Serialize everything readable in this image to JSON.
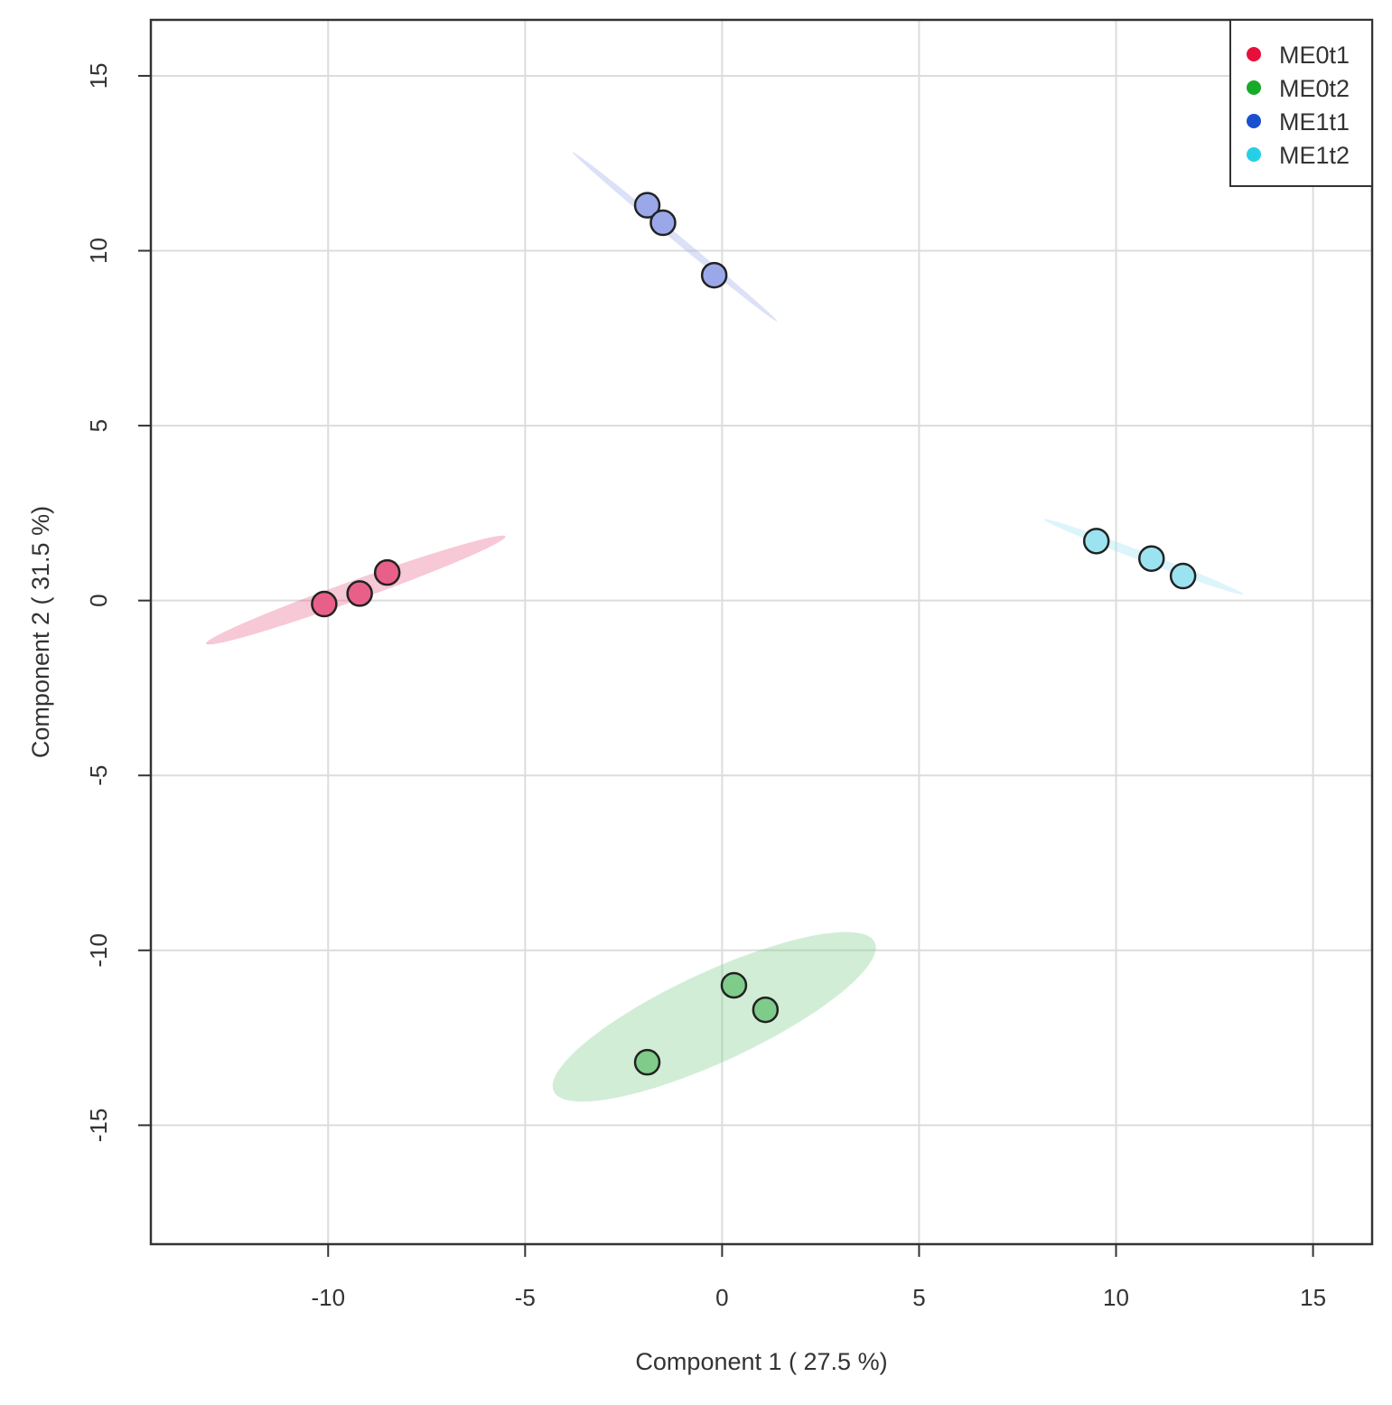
{
  "chart_data": {
    "type": "scatter",
    "title": "",
    "xlabel": "Component 1 ( 27.5 %)",
    "ylabel": "Component 2 ( 31.5 %)",
    "xlim": [
      -14.5,
      16.5
    ],
    "ylim": [
      -18.4,
      16.6
    ],
    "xticks": [
      -10,
      -5,
      0,
      5,
      10,
      15
    ],
    "xtick_labels": [
      "-10",
      "-5",
      "0",
      "5",
      "10",
      "15"
    ],
    "yticks": [
      -15,
      -10,
      -5,
      0,
      5,
      10,
      15
    ],
    "ytick_labels": [
      "-15",
      "-10",
      "-5",
      "0",
      "5",
      "10",
      "15"
    ],
    "grid": true,
    "legend_position": "top-right",
    "series": [
      {
        "name": "ME0t1",
        "color": "#e8103a",
        "fill": "#e8608a",
        "x": [
          -10.1,
          -9.2,
          -8.5
        ],
        "y": [
          -0.1,
          0.2,
          0.8
        ],
        "ellipse": {
          "center": [
            -9.3,
            0.3
          ],
          "angle_deg": 22,
          "semi_major": 4.1,
          "semi_minor": 0.28
        }
      },
      {
        "name": "ME0t2",
        "color": "#1aaa2a",
        "fill": "#7fcc8a",
        "x": [
          -1.9,
          0.3,
          1.1
        ],
        "y": [
          -13.2,
          -11.0,
          -11.7
        ],
        "ellipse": {
          "center": [
            -0.2,
            -11.9
          ],
          "angle_deg": 28,
          "semi_major": 4.6,
          "semi_minor": 1.25
        }
      },
      {
        "name": "ME1t1",
        "color": "#1a4fd0",
        "fill": "#9aa8ea",
        "x": [
          -1.9,
          -1.5,
          -0.2
        ],
        "y": [
          11.3,
          10.8,
          9.3
        ],
        "ellipse": {
          "center": [
            -1.2,
            10.4
          ],
          "angle_deg": -43,
          "semi_major": 3.55,
          "semi_minor": 0.1
        }
      },
      {
        "name": "ME1t2",
        "color": "#25d0e6",
        "fill": "#9be3f0",
        "x": [
          9.5,
          10.9,
          11.7
        ],
        "y": [
          1.7,
          1.2,
          0.7
        ],
        "ellipse": {
          "center": [
            10.7,
            1.25
          ],
          "angle_deg": -23,
          "semi_major": 2.75,
          "semi_minor": 0.13
        }
      }
    ]
  }
}
